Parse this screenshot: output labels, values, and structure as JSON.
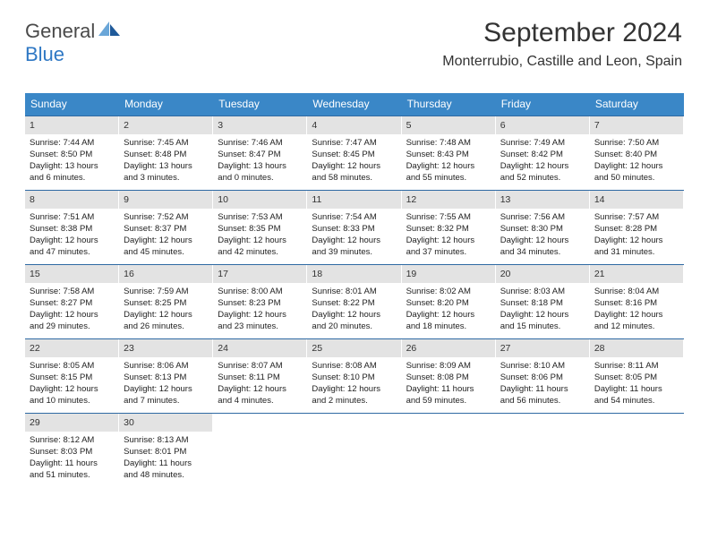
{
  "logo": {
    "text1": "General",
    "text2": "Blue"
  },
  "header": {
    "month_title": "September 2024",
    "location": "Monterrubio, Castille and Leon, Spain"
  },
  "colors": {
    "header_bg": "#3a87c7",
    "header_text": "#ffffff",
    "daynum_bg": "#e3e3e3",
    "week_border": "#2f6aa3",
    "logo_gray": "#4a4a4a",
    "logo_blue": "#2f78c4",
    "shape_light": "#6aa6d8",
    "shape_dark": "#1f5a9a"
  },
  "days_of_week": [
    "Sunday",
    "Monday",
    "Tuesday",
    "Wednesday",
    "Thursday",
    "Friday",
    "Saturday"
  ],
  "weeks": [
    [
      {
        "n": "1",
        "sunrise": "Sunrise: 7:44 AM",
        "sunset": "Sunset: 8:50 PM",
        "day1": "Daylight: 13 hours",
        "day2": "and 6 minutes."
      },
      {
        "n": "2",
        "sunrise": "Sunrise: 7:45 AM",
        "sunset": "Sunset: 8:48 PM",
        "day1": "Daylight: 13 hours",
        "day2": "and 3 minutes."
      },
      {
        "n": "3",
        "sunrise": "Sunrise: 7:46 AM",
        "sunset": "Sunset: 8:47 PM",
        "day1": "Daylight: 13 hours",
        "day2": "and 0 minutes."
      },
      {
        "n": "4",
        "sunrise": "Sunrise: 7:47 AM",
        "sunset": "Sunset: 8:45 PM",
        "day1": "Daylight: 12 hours",
        "day2": "and 58 minutes."
      },
      {
        "n": "5",
        "sunrise": "Sunrise: 7:48 AM",
        "sunset": "Sunset: 8:43 PM",
        "day1": "Daylight: 12 hours",
        "day2": "and 55 minutes."
      },
      {
        "n": "6",
        "sunrise": "Sunrise: 7:49 AM",
        "sunset": "Sunset: 8:42 PM",
        "day1": "Daylight: 12 hours",
        "day2": "and 52 minutes."
      },
      {
        "n": "7",
        "sunrise": "Sunrise: 7:50 AM",
        "sunset": "Sunset: 8:40 PM",
        "day1": "Daylight: 12 hours",
        "day2": "and 50 minutes."
      }
    ],
    [
      {
        "n": "8",
        "sunrise": "Sunrise: 7:51 AM",
        "sunset": "Sunset: 8:38 PM",
        "day1": "Daylight: 12 hours",
        "day2": "and 47 minutes."
      },
      {
        "n": "9",
        "sunrise": "Sunrise: 7:52 AM",
        "sunset": "Sunset: 8:37 PM",
        "day1": "Daylight: 12 hours",
        "day2": "and 45 minutes."
      },
      {
        "n": "10",
        "sunrise": "Sunrise: 7:53 AM",
        "sunset": "Sunset: 8:35 PM",
        "day1": "Daylight: 12 hours",
        "day2": "and 42 minutes."
      },
      {
        "n": "11",
        "sunrise": "Sunrise: 7:54 AM",
        "sunset": "Sunset: 8:33 PM",
        "day1": "Daylight: 12 hours",
        "day2": "and 39 minutes."
      },
      {
        "n": "12",
        "sunrise": "Sunrise: 7:55 AM",
        "sunset": "Sunset: 8:32 PM",
        "day1": "Daylight: 12 hours",
        "day2": "and 37 minutes."
      },
      {
        "n": "13",
        "sunrise": "Sunrise: 7:56 AM",
        "sunset": "Sunset: 8:30 PM",
        "day1": "Daylight: 12 hours",
        "day2": "and 34 minutes."
      },
      {
        "n": "14",
        "sunrise": "Sunrise: 7:57 AM",
        "sunset": "Sunset: 8:28 PM",
        "day1": "Daylight: 12 hours",
        "day2": "and 31 minutes."
      }
    ],
    [
      {
        "n": "15",
        "sunrise": "Sunrise: 7:58 AM",
        "sunset": "Sunset: 8:27 PM",
        "day1": "Daylight: 12 hours",
        "day2": "and 29 minutes."
      },
      {
        "n": "16",
        "sunrise": "Sunrise: 7:59 AM",
        "sunset": "Sunset: 8:25 PM",
        "day1": "Daylight: 12 hours",
        "day2": "and 26 minutes."
      },
      {
        "n": "17",
        "sunrise": "Sunrise: 8:00 AM",
        "sunset": "Sunset: 8:23 PM",
        "day1": "Daylight: 12 hours",
        "day2": "and 23 minutes."
      },
      {
        "n": "18",
        "sunrise": "Sunrise: 8:01 AM",
        "sunset": "Sunset: 8:22 PM",
        "day1": "Daylight: 12 hours",
        "day2": "and 20 minutes."
      },
      {
        "n": "19",
        "sunrise": "Sunrise: 8:02 AM",
        "sunset": "Sunset: 8:20 PM",
        "day1": "Daylight: 12 hours",
        "day2": "and 18 minutes."
      },
      {
        "n": "20",
        "sunrise": "Sunrise: 8:03 AM",
        "sunset": "Sunset: 8:18 PM",
        "day1": "Daylight: 12 hours",
        "day2": "and 15 minutes."
      },
      {
        "n": "21",
        "sunrise": "Sunrise: 8:04 AM",
        "sunset": "Sunset: 8:16 PM",
        "day1": "Daylight: 12 hours",
        "day2": "and 12 minutes."
      }
    ],
    [
      {
        "n": "22",
        "sunrise": "Sunrise: 8:05 AM",
        "sunset": "Sunset: 8:15 PM",
        "day1": "Daylight: 12 hours",
        "day2": "and 10 minutes."
      },
      {
        "n": "23",
        "sunrise": "Sunrise: 8:06 AM",
        "sunset": "Sunset: 8:13 PM",
        "day1": "Daylight: 12 hours",
        "day2": "and 7 minutes."
      },
      {
        "n": "24",
        "sunrise": "Sunrise: 8:07 AM",
        "sunset": "Sunset: 8:11 PM",
        "day1": "Daylight: 12 hours",
        "day2": "and 4 minutes."
      },
      {
        "n": "25",
        "sunrise": "Sunrise: 8:08 AM",
        "sunset": "Sunset: 8:10 PM",
        "day1": "Daylight: 12 hours",
        "day2": "and 2 minutes."
      },
      {
        "n": "26",
        "sunrise": "Sunrise: 8:09 AM",
        "sunset": "Sunset: 8:08 PM",
        "day1": "Daylight: 11 hours",
        "day2": "and 59 minutes."
      },
      {
        "n": "27",
        "sunrise": "Sunrise: 8:10 AM",
        "sunset": "Sunset: 8:06 PM",
        "day1": "Daylight: 11 hours",
        "day2": "and 56 minutes."
      },
      {
        "n": "28",
        "sunrise": "Sunrise: 8:11 AM",
        "sunset": "Sunset: 8:05 PM",
        "day1": "Daylight: 11 hours",
        "day2": "and 54 minutes."
      }
    ],
    [
      {
        "n": "29",
        "sunrise": "Sunrise: 8:12 AM",
        "sunset": "Sunset: 8:03 PM",
        "day1": "Daylight: 11 hours",
        "day2": "and 51 minutes."
      },
      {
        "n": "30",
        "sunrise": "Sunrise: 8:13 AM",
        "sunset": "Sunset: 8:01 PM",
        "day1": "Daylight: 11 hours",
        "day2": "and 48 minutes."
      },
      {
        "empty": true
      },
      {
        "empty": true
      },
      {
        "empty": true
      },
      {
        "empty": true
      },
      {
        "empty": true
      }
    ]
  ]
}
